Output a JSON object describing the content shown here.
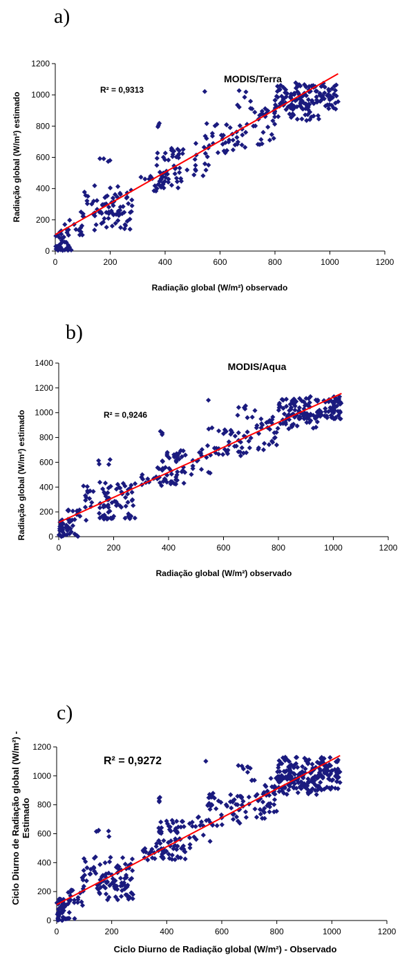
{
  "chart_data": [
    {
      "panel_label": "a)",
      "type": "scatter",
      "title": "MODIS/Terra",
      "xlabel": "Radiação global (W/m²) observado",
      "ylabel": "Radiação global (W/m²) estimado",
      "r2_label": "R² = 0,9313",
      "xlim": [
        0,
        1200
      ],
      "ylim": [
        0,
        1200
      ],
      "x_ticks": [
        0,
        200,
        400,
        600,
        800,
        1000,
        1200
      ],
      "y_ticks": [
        0,
        200,
        400,
        600,
        800,
        1000,
        1200
      ],
      "grid": false,
      "trendline": {
        "x": [
          0,
          1030
        ],
        "y": [
          105,
          1135
        ],
        "color": "#ff0000"
      },
      "marker_color": "#1a1a7e",
      "clusters": [
        [
          0,
          60,
          0,
          140,
          30
        ],
        [
          0,
          70,
          0,
          25,
          8
        ],
        [
          30,
          100,
          100,
          200,
          12
        ],
        [
          90,
          280,
          220,
          420,
          45
        ],
        [
          140,
          280,
          130,
          300,
          35
        ],
        [
          140,
          200,
          570,
          610,
          4
        ],
        [
          300,
          400,
          380,
          480,
          14
        ],
        [
          360,
          470,
          400,
          550,
          30
        ],
        [
          370,
          470,
          580,
          660,
          20
        ],
        [
          370,
          380,
          780,
          820,
          3
        ],
        [
          480,
          560,
          480,
          690,
          14
        ],
        [
          540,
          700,
          620,
          820,
          42
        ],
        [
          650,
          720,
          900,
          1030,
          8
        ],
        [
          720,
          800,
          700,
          900,
          22
        ],
        [
          760,
          960,
          830,
          950,
          35
        ],
        [
          800,
          1030,
          900,
          1080,
          120
        ],
        [
          720,
          760,
          680,
          690,
          3
        ],
        [
          540,
          550,
          1020,
          1025,
          1
        ],
        [
          950,
          1020,
          950,
          1000,
          5
        ]
      ],
      "seed": 11
    },
    {
      "panel_label": "b)",
      "type": "scatter",
      "title": "MODIS/Aqua",
      "xlabel": "Radiação global (W/m²) observado",
      "ylabel": "Radiação global (W/m²) estimado",
      "r2_label": "R² = 0,9246",
      "xlim": [
        0,
        1200
      ],
      "ylim": [
        0,
        1400
      ],
      "x_ticks": [
        0,
        200,
        400,
        600,
        800,
        1000,
        1200
      ],
      "y_ticks": [
        0,
        200,
        400,
        600,
        800,
        1000,
        1200,
        1400
      ],
      "grid": false,
      "trendline": {
        "x": [
          0,
          1030
        ],
        "y": [
          115,
          1155
        ],
        "color": "#ff0000"
      },
      "marker_color": "#1a1a7e",
      "clusters": [
        [
          0,
          60,
          0,
          150,
          30
        ],
        [
          0,
          70,
          0,
          25,
          8
        ],
        [
          30,
          100,
          100,
          220,
          12
        ],
        [
          90,
          280,
          230,
          440,
          45
        ],
        [
          140,
          280,
          140,
          300,
          35
        ],
        [
          140,
          200,
          580,
          630,
          4
        ],
        [
          300,
          400,
          400,
          500,
          14
        ],
        [
          360,
          470,
          420,
          570,
          30
        ],
        [
          370,
          470,
          600,
          700,
          20
        ],
        [
          370,
          380,
          820,
          870,
          3
        ],
        [
          480,
          560,
          500,
          720,
          14
        ],
        [
          540,
          700,
          650,
          880,
          42
        ],
        [
          650,
          720,
          950,
          1080,
          8
        ],
        [
          720,
          800,
          730,
          950,
          22
        ],
        [
          760,
          960,
          870,
          1000,
          35
        ],
        [
          800,
          1030,
          950,
          1130,
          120
        ],
        [
          720,
          760,
          700,
          720,
          3
        ],
        [
          540,
          550,
          1100,
          1110,
          1
        ],
        [
          950,
          1020,
          980,
          1060,
          5
        ]
      ],
      "seed": 23
    },
    {
      "panel_label": "c)",
      "type": "scatter",
      "title": "",
      "xlabel": "Ciclo Diurno de Radiação global (W/m²) - Observado",
      "ylabel_lines": [
        "Ciclo Diurno de Radiação global (W/m²) -",
        "Estimado"
      ],
      "r2_label": "R² = 0,9272",
      "xlim": [
        0,
        1200
      ],
      "ylim": [
        0,
        1200
      ],
      "x_ticks": [
        0,
        200,
        400,
        600,
        800,
        1000,
        1200
      ],
      "y_ticks": [
        0,
        200,
        400,
        600,
        800,
        1000,
        1200
      ],
      "grid": false,
      "trendline": {
        "x": [
          0,
          1030
        ],
        "y": [
          110,
          1140
        ],
        "color": "#ff0000"
      },
      "marker_color": "#1a1a7e",
      "clusters": [
        [
          0,
          60,
          0,
          150,
          40
        ],
        [
          0,
          70,
          0,
          25,
          10
        ],
        [
          30,
          100,
          100,
          220,
          16
        ],
        [
          90,
          280,
          230,
          440,
          60
        ],
        [
          140,
          280,
          140,
          300,
          45
        ],
        [
          140,
          200,
          580,
          630,
          5
        ],
        [
          300,
          400,
          400,
          500,
          20
        ],
        [
          360,
          470,
          420,
          570,
          40
        ],
        [
          370,
          470,
          600,
          700,
          28
        ],
        [
          370,
          380,
          820,
          870,
          4
        ],
        [
          480,
          560,
          500,
          720,
          18
        ],
        [
          540,
          700,
          650,
          880,
          55
        ],
        [
          650,
          720,
          950,
          1080,
          10
        ],
        [
          720,
          800,
          730,
          950,
          30
        ],
        [
          760,
          960,
          870,
          1000,
          45
        ],
        [
          800,
          1030,
          900,
          1130,
          180
        ],
        [
          720,
          760,
          700,
          720,
          3
        ],
        [
          540,
          550,
          1100,
          1110,
          1
        ],
        [
          950,
          1020,
          980,
          1060,
          6
        ]
      ],
      "seed": 37
    }
  ]
}
